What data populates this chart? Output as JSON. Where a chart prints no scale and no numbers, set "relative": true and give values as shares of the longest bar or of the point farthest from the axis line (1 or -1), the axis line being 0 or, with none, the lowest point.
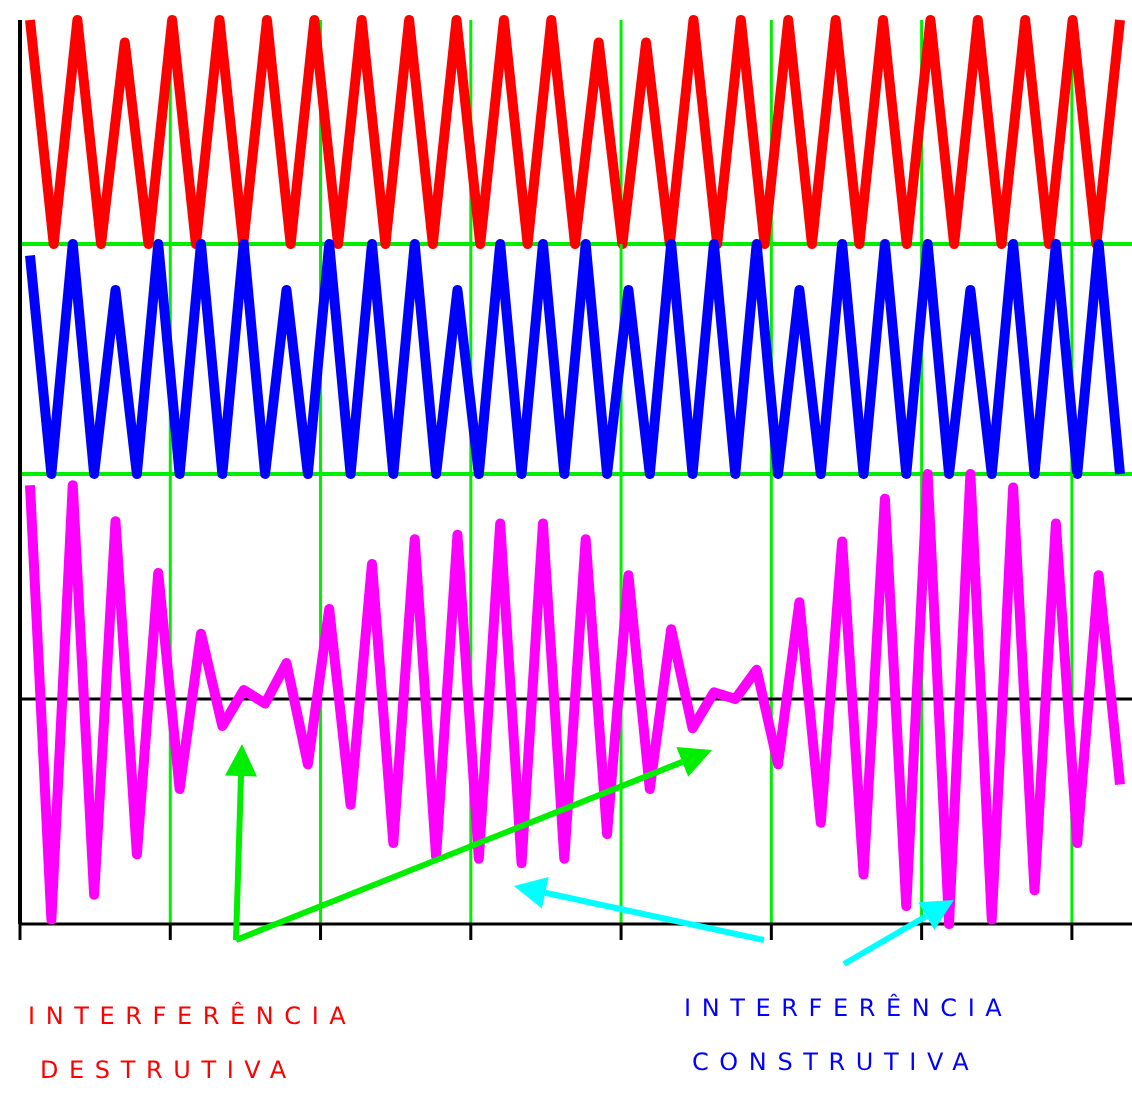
{
  "chart_data": [
    {
      "type": "line",
      "relative": true,
      "grid": "x",
      "categories": [
        null,
        null,
        null,
        null,
        null,
        null,
        null,
        null,
        null,
        null,
        null,
        null,
        null,
        null,
        null,
        null,
        null,
        null,
        null,
        null,
        null,
        null,
        null,
        null,
        null,
        null,
        null,
        null,
        null,
        null,
        null,
        null,
        null,
        null,
        null,
        null,
        null,
        null,
        null,
        null,
        null,
        null,
        null,
        null,
        null,
        null,
        null
      ],
      "series": [
        {
          "color": "#ff0000",
          "values": [
            1,
            0,
            1,
            0,
            0.9,
            0,
            1,
            0,
            1,
            0,
            1,
            0,
            1,
            0,
            1,
            0,
            1,
            0,
            1,
            0,
            1,
            0,
            1,
            0,
            0.9,
            0,
            0.9,
            0,
            1,
            0,
            1,
            0,
            1,
            0,
            1,
            0,
            1,
            0,
            1,
            0,
            1,
            0,
            1,
            0,
            1,
            0,
            1
          ]
        }
      ]
    },
    {
      "type": "line",
      "relative": true,
      "grid": "x",
      "categories": [
        null,
        null,
        null,
        null,
        null,
        null,
        null,
        null,
        null,
        null,
        null,
        null,
        null,
        null,
        null,
        null,
        null,
        null,
        null,
        null,
        null,
        null,
        null,
        null,
        null,
        null,
        null,
        null,
        null,
        null,
        null,
        null,
        null,
        null,
        null,
        null,
        null,
        null,
        null,
        null,
        null,
        null,
        null,
        null,
        null,
        null,
        null,
        null,
        null,
        null,
        null,
        null
      ],
      "series": [
        {
          "color": "#0000ff",
          "values": [
            0.95,
            0,
            1,
            0,
            0.8,
            0,
            1,
            0,
            1,
            0,
            1,
            0,
            0.8,
            0,
            1,
            0,
            1,
            0,
            1,
            0,
            0.8,
            0,
            1,
            0,
            1,
            0,
            1,
            0,
            0.8,
            0,
            1,
            0,
            1,
            0,
            1,
            0,
            0.8,
            0,
            1,
            0,
            1,
            0,
            1,
            0,
            0.8,
            0,
            1,
            0,
            1,
            0,
            1,
            0
          ]
        }
      ]
    },
    {
      "type": "line",
      "relative": true,
      "grid": "x",
      "categories": [
        null,
        null,
        null,
        null,
        null,
        null,
        null,
        null,
        null,
        null,
        null,
        null,
        null,
        null,
        null,
        null,
        null,
        null,
        null,
        null,
        null,
        null,
        null,
        null,
        null,
        null,
        null,
        null,
        null,
        null,
        null,
        null,
        null,
        null,
        null,
        null,
        null,
        null,
        null,
        null,
        null,
        null,
        null,
        null,
        null,
        null,
        null,
        null,
        null,
        null,
        null,
        null
      ],
      "series": [
        {
          "color": "#ff00ff",
          "values": [
            0.95,
            -0.98,
            0.95,
            -0.87,
            0.79,
            -0.69,
            0.56,
            -0.4,
            0.29,
            -0.12,
            0.04,
            -0.02,
            0.16,
            -0.29,
            0.4,
            -0.47,
            0.6,
            -0.64,
            0.71,
            -0.7,
            0.73,
            -0.71,
            0.78,
            -0.73,
            0.78,
            -0.71,
            0.71,
            -0.6,
            0.55,
            -0.4,
            0.31,
            -0.13,
            0.03,
            0,
            0.13,
            -0.29,
            0.43,
            -0.55,
            0.7,
            -0.78,
            0.89,
            -0.92,
            1,
            -1,
            1,
            -0.98,
            0.94,
            -0.85,
            0.78,
            -0.64,
            0.55,
            -0.38
          ]
        }
      ],
      "annotations": [
        "INTERFERÊNCIA DESTRUTIVA",
        "INTERFERÊNCIA CONSTRUTIVA"
      ]
    }
  ]
}
